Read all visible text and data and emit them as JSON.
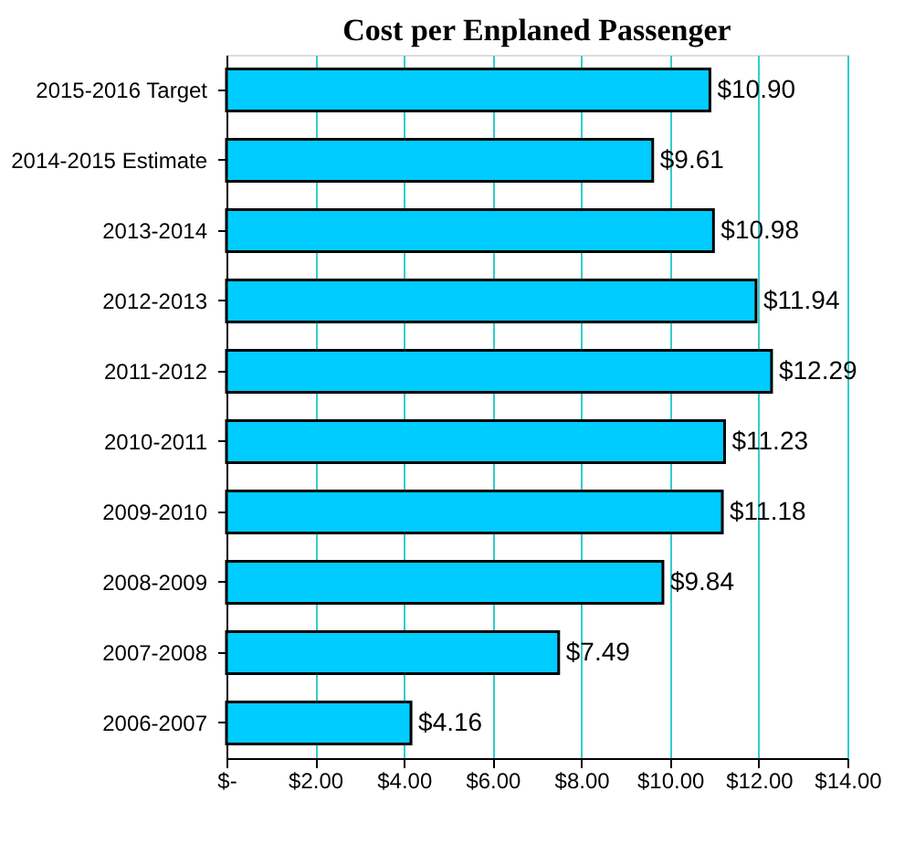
{
  "chart_data": {
    "type": "bar",
    "orientation": "horizontal",
    "title": "Cost per Enplaned Passenger",
    "categories": [
      "2015-2016 Target",
      "2014-2015 Estimate",
      "2013-2014",
      "2012-2013",
      "2011-2012",
      "2010-2011",
      "2009-2010",
      "2008-2009",
      "2007-2008",
      "2006-2007"
    ],
    "values": [
      10.9,
      9.61,
      10.98,
      11.94,
      12.29,
      11.23,
      11.18,
      9.84,
      7.49,
      4.16
    ],
    "value_labels": [
      "$10.90",
      "$9.61",
      "$10.98",
      "$11.94",
      "$12.29",
      "$11.23",
      "$11.18",
      "$9.84",
      "$7.49",
      "$4.16"
    ],
    "color": "#00ccff",
    "xlim": [
      0,
      14
    ],
    "xticks": [
      {
        "value": 0,
        "label": "$-"
      },
      {
        "value": 2,
        "label": "$2.00"
      },
      {
        "value": 4,
        "label": "$4.00"
      },
      {
        "value": 6,
        "label": "$6.00"
      },
      {
        "value": 8,
        "label": "$8.00"
      },
      {
        "value": 10,
        "label": "$10.00"
      },
      {
        "value": 12,
        "label": "$12.00"
      },
      {
        "value": 14,
        "label": "$14.00"
      }
    ],
    "grid": "x"
  }
}
